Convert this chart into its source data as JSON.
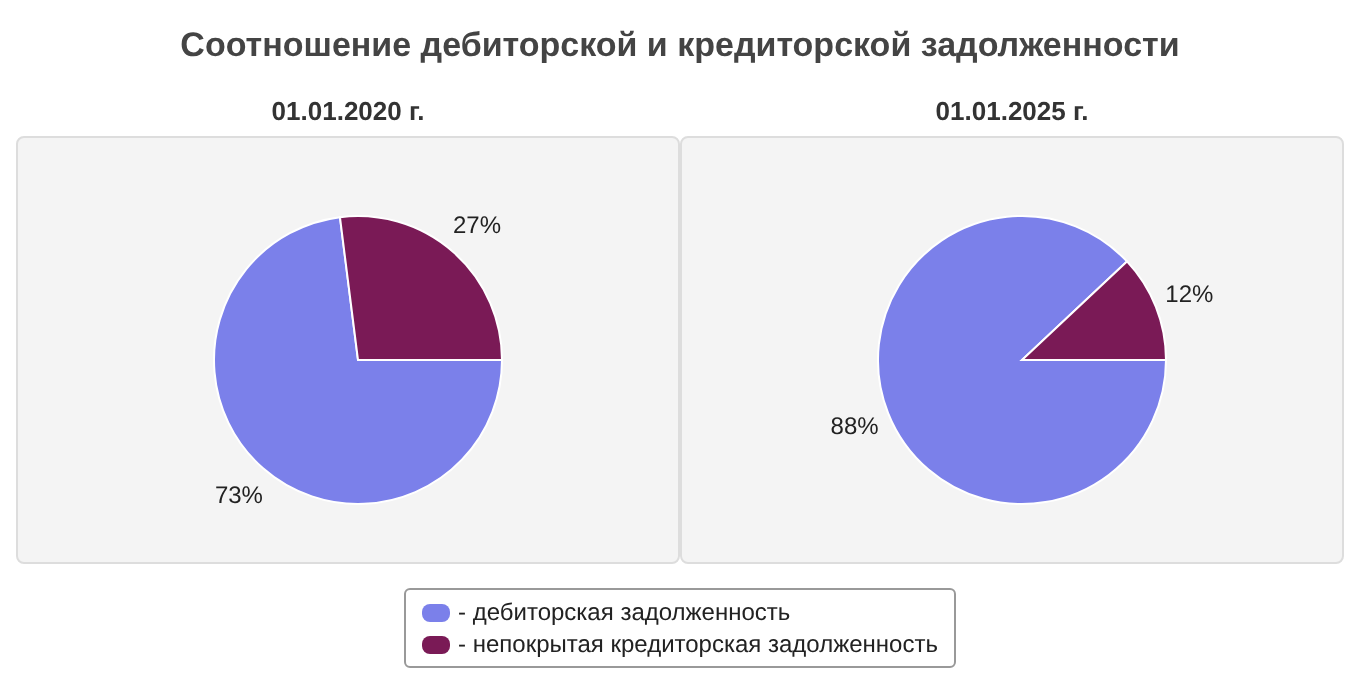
{
  "chart_data": [
    {
      "type": "pie",
      "title": "Соотношение дебиторской и кредиторской задолженности",
      "subtitle": "01.01.2020 г.",
      "categories": [
        "- дебиторская задолженность",
        "- непокрытая кредиторская задолженность"
      ],
      "values": [
        73,
        27
      ],
      "colors": [
        "#7b80ea",
        "#7a1a56"
      ],
      "value_labels": [
        "73%",
        "27%"
      ],
      "legend": "bottom"
    },
    {
      "type": "pie",
      "subtitle": "01.01.2025 г.",
      "values": [
        88,
        12
      ],
      "colors": [
        "#7b80ea",
        "#7a1a56"
      ],
      "value_labels": [
        "88%",
        "12%"
      ]
    }
  ]
}
